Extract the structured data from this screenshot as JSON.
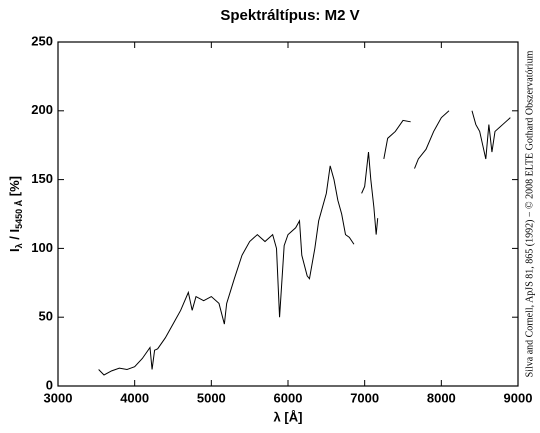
{
  "chart_data": {
    "type": "line",
    "title": "Spektráltípus: M2 V",
    "xlabel": "λ [Å]",
    "ylabel_parts": [
      "I",
      "λ",
      " / I",
      "5450 Å",
      " [%]"
    ],
    "credit": "Silva and Cornell, ApJS 81, 865 (1992) − © 2008 ELTE Gothard Obszervatórium",
    "color": "#000000",
    "xlim": [
      3000,
      9000
    ],
    "xticks": [
      3000,
      4000,
      5000,
      6000,
      7000,
      8000,
      9000
    ],
    "ylim": [
      0,
      250
    ],
    "yticks": [
      0,
      50,
      100,
      150,
      200,
      250
    ],
    "x": [
      3530,
      3600,
      3700,
      3800,
      3900,
      4000,
      4100,
      4200,
      4227,
      4260,
      4300,
      4400,
      4500,
      4600,
      4700,
      4750,
      4800,
      4900,
      5000,
      5100,
      5170,
      5200,
      5300,
      5400,
      5500,
      5600,
      5700,
      5800,
      5850,
      5890,
      5950,
      6000,
      6100,
      6150,
      6180,
      6250,
      6280,
      6350,
      6400,
      6500,
      6550,
      6600,
      6650,
      6700,
      6750,
      6800,
      6860,
      6910,
      6960,
      7000,
      7050,
      7080,
      7120,
      7150,
      7170,
      7210,
      7250,
      7300,
      7400,
      7500,
      7600,
      7625,
      7650,
      7700,
      7800,
      7900,
      8000,
      8100,
      8250,
      8400,
      8450,
      8500,
      8540,
      8580,
      8620,
      8660,
      8700,
      8800,
      8900
    ],
    "values": [
      12,
      8,
      11,
      13,
      12,
      14,
      20,
      28,
      12,
      26,
      27,
      35,
      45,
      55,
      68,
      55,
      65,
      62,
      65,
      60,
      45,
      60,
      78,
      95,
      105,
      110,
      105,
      110,
      100,
      50,
      102,
      110,
      115,
      120,
      95,
      80,
      78,
      100,
      120,
      140,
      160,
      150,
      135,
      125,
      110,
      108,
      103,
      null,
      140,
      145,
      170,
      150,
      130,
      110,
      122,
      null,
      165,
      180,
      185,
      193,
      192,
      null,
      158,
      165,
      172,
      185,
      195,
      200,
      null,
      200,
      190,
      185,
      175,
      165,
      190,
      170,
      185,
      190,
      195
    ]
  }
}
